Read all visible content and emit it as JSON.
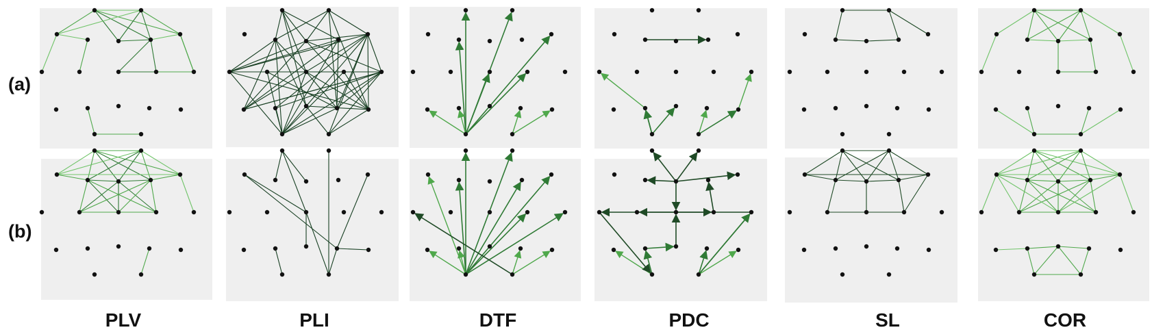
{
  "figure": {
    "row_labels": [
      "(a)",
      "(b)"
    ],
    "column_labels": [
      "PLV",
      "PLI",
      "DTF",
      "PDC",
      "SL",
      "COR"
    ],
    "colors": {
      "panel_background": "#efefef",
      "node": "#111111",
      "edge_palette": [
        "#71c46a",
        "#4fa84b",
        "#2f7a35",
        "#1f4a26",
        "#173f22"
      ]
    },
    "edge_style_per_column": {
      "PLV": "undirected-green-gradient",
      "PLI": "undirected-dark",
      "DTF": "directed-arrows-green",
      "PDC": "directed-arrows-green",
      "SL": "undirected-dark",
      "COR": "undirected-green-gradient"
    }
  }
}
